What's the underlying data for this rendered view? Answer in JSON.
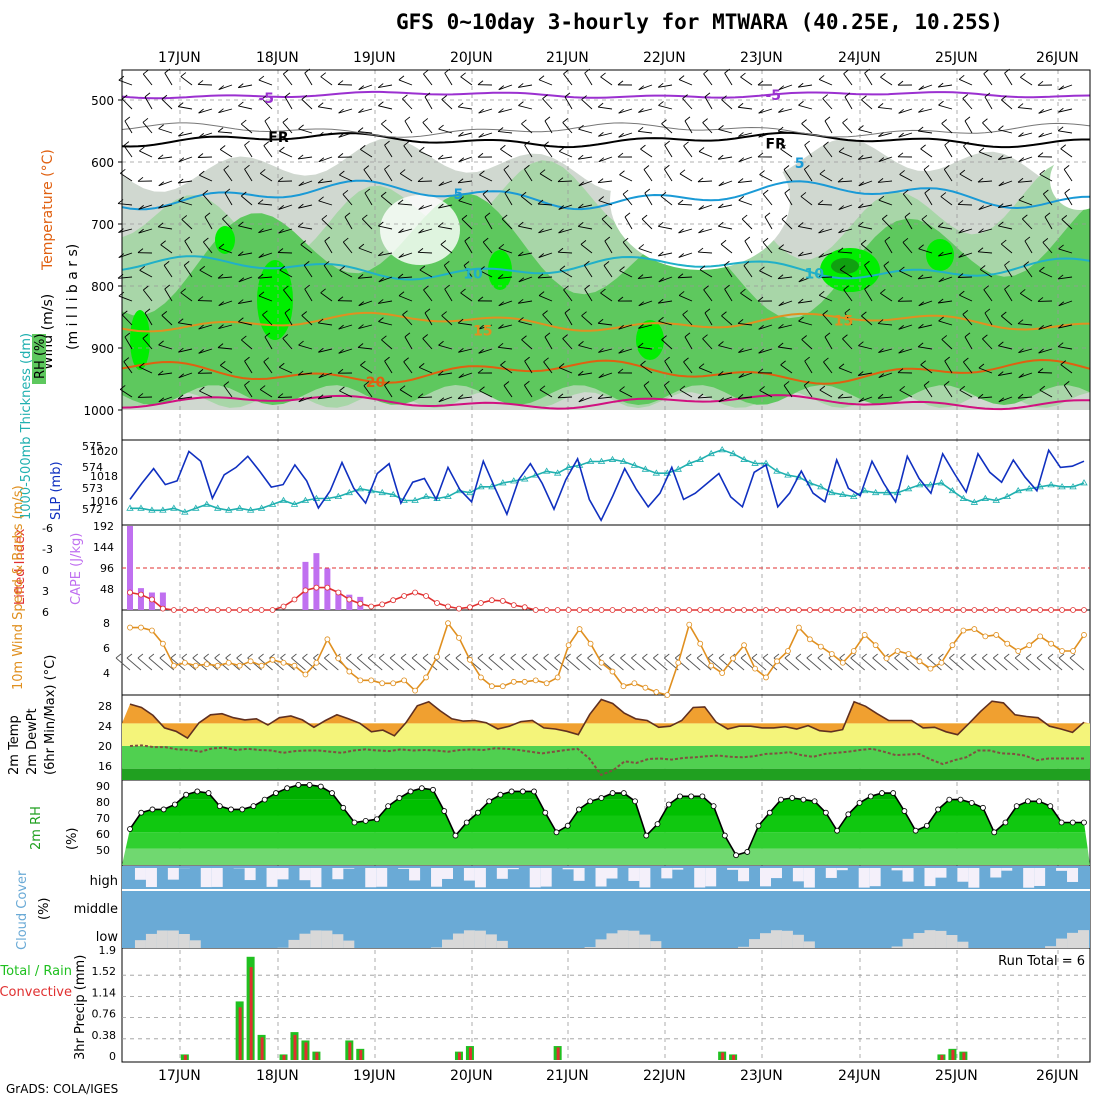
{
  "title": "GFS 0~10day 3-hourly for MTWARA (40.25E, 10.25S)",
  "footer": "GrADS: COLA/IGES",
  "colors": {
    "rh_light": "#d0d8d0",
    "rh_mid": "#a8d6a8",
    "rh_green": "#5ec85e",
    "rh_bright": "#00ee00",
    "temp_purple": "#9b30d0",
    "temp_blue": "#1a9ad6",
    "temp_cyan": "#20b0c8",
    "temp_orange": "#e09020",
    "temp_dark_orange": "#e06010",
    "slp": "#1030c0",
    "thickness": "#20b0b0",
    "cape": "#c070f0",
    "lifted_index": "#e03030",
    "wind_speed": "#e09020",
    "temp_fill": "#f0a030",
    "dewpt_fill": "#50d050",
    "rh_fill": "#20c020",
    "cloud_blue": "#6aaad6",
    "cloud_grey": "#d8d8d8",
    "precip_total": "#20c020",
    "precip_conv": "#e03030"
  },
  "chart_data": [
    {
      "type": "area",
      "panel": "upper-air",
      "ylabel_rh": "RH (%)",
      "ylabel_temp": "Temperature (°C)",
      "ylabel_wind": "Wind (m/s)",
      "ylabel_units": "(m i l l i b a r s)",
      "y_ticks": [
        "500",
        "600",
        "700",
        "800",
        "900",
        "1000"
      ],
      "ylim": [
        1000,
        450
      ],
      "dates": [
        "17JUN",
        "18JUN",
        "19JUN",
        "20JUN",
        "21JUN",
        "22JUN",
        "23JUN",
        "24JUN",
        "25JUN",
        "26JUN"
      ],
      "contour_labels": [
        {
          "text": "-5",
          "t": 1.4,
          "p": 497,
          "color": "temp_purple"
        },
        {
          "text": "-5",
          "t": 6.6,
          "p": 492,
          "color": "temp_purple"
        },
        {
          "text": "FR",
          "t": 1.5,
          "p": 560,
          "color": "black"
        },
        {
          "text": "FR",
          "t": 6.6,
          "p": 570,
          "color": "black"
        },
        {
          "text": "5",
          "t": 3.4,
          "p": 652,
          "color": "temp_blue"
        },
        {
          "text": "5",
          "t": 6.9,
          "p": 602,
          "color": "temp_blue"
        },
        {
          "text": "10",
          "t": 3.5,
          "p": 780,
          "color": "temp_cyan"
        },
        {
          "text": "10",
          "t": 7.0,
          "p": 780,
          "color": "temp_cyan"
        },
        {
          "text": "15",
          "t": 3.6,
          "p": 872,
          "color": "temp_orange"
        },
        {
          "text": "15",
          "t": 7.3,
          "p": 856,
          "color": "temp_orange"
        },
        {
          "text": "20",
          "t": 2.5,
          "p": 955,
          "color": "temp_dark_orange"
        }
      ]
    },
    {
      "type": "line",
      "panel": "slp-thickness",
      "ylabel_left": "1000-500mb Thickness (dm)",
      "ylabel_right": "SLP (mb)",
      "y_ticks_left": [
        "575",
        "574",
        "573",
        "572"
      ],
      "y_ticks_right": [
        "1020",
        "1018",
        "1016"
      ],
      "series": [
        {
          "role": "slp",
          "values": [
            1016.5,
            1017.8,
            1019.0,
            1017.7,
            1018.0,
            1020.4,
            1019.6,
            1016.6,
            1018.5,
            1019.1,
            1020.0,
            1018.8,
            1017.5,
            1017.7,
            1019.3,
            1018.0,
            1015.8,
            1017.2,
            1019.5,
            1017.4,
            1016.2,
            1018.6,
            1019.4,
            1016.2,
            1017.9,
            1018.2,
            1016.5,
            1019.1,
            1017.3,
            1016.3,
            1019.6,
            1017.4,
            1015.3,
            1018.1,
            1019.4,
            1017.8,
            1015.7,
            1018.1,
            1019.8,
            1016.5,
            1014.8,
            1016.8,
            1019.0,
            1017.3,
            1015.9,
            1017.0,
            1019.1,
            1016.5,
            1017.0,
            1017.8,
            1018.6,
            1016.7,
            1015.9,
            1018.7,
            1019.3,
            1015.9,
            1017.0,
            1018.8,
            1017.0,
            1016.3,
            1019.7,
            1017.4,
            1016.8,
            1019.6,
            1017.8,
            1016.3,
            1020.0,
            1018.2,
            1017.0,
            1020.2,
            1018.6,
            1017.1,
            1020.2,
            1018.7,
            1017.9,
            1019.7,
            1018.3,
            1017.2,
            1020.5,
            1019.1,
            1019.2,
            1019.6
          ]
        },
        {
          "role": "thickness",
          "values": [
            572.1,
            572.1,
            572.0,
            572.0,
            572.1,
            571.9,
            572.1,
            572.3,
            572.1,
            572.0,
            572.1,
            572.0,
            572.1,
            572.3,
            572.5,
            572.3,
            572.5,
            572.6,
            572.6,
            572.7,
            572.9,
            573.1,
            573.0,
            572.9,
            572.8,
            572.5,
            572.5,
            572.7,
            572.6,
            572.7,
            573.0,
            572.9,
            573.2,
            573.2,
            573.4,
            573.5,
            573.6,
            573.8,
            574.0,
            573.9,
            574.2,
            574.3,
            574.5,
            574.5,
            574.6,
            574.5,
            574.3,
            574.1,
            573.9,
            573.9,
            574.1,
            574.4,
            574.6,
            574.9,
            575.1,
            574.9,
            574.6,
            574.4,
            574.4,
            574.0,
            573.8,
            573.7,
            573.4,
            573.2,
            572.9,
            572.8,
            572.7,
            573.0,
            572.9,
            572.9,
            572.9,
            573.1,
            573.3,
            573.3,
            573.4,
            573.0,
            572.6,
            572.4,
            572.6,
            572.5,
            572.7,
            573.0,
            573.1,
            573.2,
            573.3,
            573.2,
            573.2,
            573.4
          ]
        }
      ]
    },
    {
      "type": "bar",
      "panel": "cape-li",
      "ylabel_left": "Lifted Index",
      "ylabel_right": "CAPE (J/kg)",
      "y_ticks_left": [
        "-6",
        "-3",
        "0",
        "3",
        "6"
      ],
      "y_ticks_right": [
        "192",
        "144",
        "96",
        "48",
        ""
      ],
      "series": [
        {
          "role": "cape",
          "values": [
            192,
            50,
            40,
            40,
            0,
            0,
            0,
            0,
            0,
            0,
            0,
            0,
            0,
            0,
            0,
            0,
            110,
            130,
            95,
            45,
            35,
            30,
            0,
            0,
            0,
            0,
            0,
            0,
            0,
            0,
            0,
            0,
            0,
            0,
            0,
            0,
            0,
            0,
            0,
            0,
            0,
            0,
            0,
            0,
            0,
            0,
            0,
            0,
            0,
            0,
            0,
            0,
            0,
            0,
            0,
            0,
            0,
            0,
            0,
            0,
            0,
            0,
            0,
            0,
            0,
            0,
            0,
            0,
            0,
            0,
            0,
            0,
            0,
            0,
            0,
            0,
            0,
            0,
            0,
            0,
            0,
            0,
            0,
            0,
            0,
            0,
            0,
            0
          ]
        },
        {
          "role": "li",
          "values": [
            3.5,
            3.8,
            4.5,
            5.8,
            6.0,
            6.0,
            6.0,
            6.0,
            6.0,
            6.0,
            6.0,
            6.0,
            6.0,
            6.0,
            5.5,
            4.5,
            3.2,
            2.8,
            2.8,
            3.5,
            4.5,
            5.1,
            5.5,
            5.2,
            4.6,
            4.0,
            3.5,
            4.0,
            5.0,
            5.5,
            5.8,
            5.6,
            5.0,
            4.6,
            4.7,
            5.3,
            5.6,
            6.0,
            6.0,
            6.0,
            6.0,
            6.0,
            6.0,
            6.0,
            6.0,
            6.0,
            6.0,
            6.0,
            6.0,
            6.0,
            6.0,
            6.0,
            6.0,
            6.0,
            6.0,
            6.0,
            6.0,
            6.0,
            6.0,
            6.0,
            6.0,
            6.0,
            6.0,
            6.0,
            6.0,
            6.0,
            6.0,
            6.0,
            6.0,
            6.0,
            6.0,
            6.0,
            6.0,
            6.0,
            6.0,
            6.0,
            6.0,
            6.0,
            6.0,
            6.0,
            6.0,
            6.0,
            6.0,
            6.0,
            6.0,
            6.0,
            6.0,
            6.0
          ]
        }
      ]
    },
    {
      "type": "line",
      "panel": "wind",
      "ylabel": "10m Wind Speed & Barbs (m/s)",
      "y_ticks": [
        "8",
        "6",
        "4"
      ],
      "series": [
        {
          "role": "speed",
          "values": [
            7.6,
            7.6,
            7.4,
            6.5,
            5.0,
            5.2,
            5.0,
            5.1,
            5.0,
            5.2,
            5.0,
            5.3,
            5.0,
            5.4,
            5.2,
            5.0,
            4.4,
            5.2,
            6.8,
            5.5,
            4.6,
            4.0,
            4.0,
            3.8,
            3.8,
            4.0,
            3.3,
            4.2,
            5.6,
            7.9,
            6.9,
            5.4,
            4.2,
            3.6,
            3.6,
            3.9,
            3.9,
            4.0,
            3.8,
            4.2,
            6.4,
            7.5,
            6.5,
            5.2,
            4.6,
            3.6,
            3.8,
            3.5,
            3.2,
            3.0,
            5.2,
            7.8,
            6.5,
            5.0,
            4.5,
            5.5,
            6.4,
            4.8,
            4.2,
            5.3,
            6.0,
            7.6,
            6.8,
            6.3,
            5.8,
            5.2,
            6.0,
            7.1,
            6.4,
            5.5,
            6.0,
            5.8,
            5.3,
            4.8,
            5.2,
            6.4,
            7.4,
            7.5,
            7.0,
            7.1,
            6.5,
            6.0,
            6.4,
            7.0,
            6.5,
            6.0,
            6.0,
            7.1
          ]
        }
      ]
    },
    {
      "type": "area",
      "panel": "temp",
      "ylabel": "2m Temp 2m DewPt (6hr Min/Max) (°C)",
      "y_ticks": [
        "28",
        "24",
        "20",
        "16"
      ],
      "series": [
        {
          "role": "temp",
          "values": [
            27.4,
            26.8,
            25.4,
            23.2,
            22.6,
            21.4,
            24.1,
            25.5,
            25.7,
            25.0,
            24.6,
            24.8,
            23.7,
            25.0,
            25.3,
            24.6,
            23.3,
            24.5,
            25.5,
            24.8,
            24.0,
            22.5,
            22.8,
            21.8,
            24.1,
            27.1,
            27.8,
            26.2,
            24.8,
            24.4,
            24.5,
            24.1,
            23.0,
            23.5,
            24.3,
            24.5,
            23.2,
            23.0,
            22.6,
            22.0,
            25.6,
            28.2,
            27.5,
            25.8,
            24.8,
            24.5,
            23.3,
            23.5,
            24.5,
            26.8,
            26.9,
            24.2,
            23.0,
            23.5,
            23.5,
            23.2,
            23.2,
            23.4,
            23.0,
            23.6,
            22.7,
            22.5,
            22.9,
            27.8,
            27.0,
            25.7,
            24.5,
            24.5,
            24.5,
            23.2,
            23.3,
            22.5,
            22.0,
            24.0,
            26.1,
            27.9,
            27.6,
            25.5,
            25.2,
            25.0,
            23.5,
            23.0,
            22.4,
            24.2
          ]
        },
        {
          "role": "dewpt",
          "values": [
            20.0,
            20.1,
            19.8,
            19.8,
            19.4,
            19.3,
            19.0,
            19.6,
            19.7,
            19.3,
            19.5,
            19.3,
            19.2,
            18.8,
            19.1,
            19.2,
            19.2,
            19.0,
            18.8,
            19.2,
            19.4,
            19.2,
            19.1,
            19.4,
            19.2,
            19.3,
            19.2,
            19.0,
            19.3,
            19.4,
            19.3,
            19.6,
            19.5,
            19.3,
            19.0,
            18.7,
            19.0,
            19.3,
            19.5,
            17.8,
            14.9,
            15.7,
            17.3,
            17.0,
            17.7,
            17.8,
            17.6,
            17.9,
            18.0,
            18.2,
            18.3,
            18.1,
            18.0,
            18.2,
            18.6,
            18.7,
            18.9,
            18.4,
            18.1,
            18.6,
            18.8,
            19.0,
            19.3,
            19.5,
            19.0,
            18.4,
            18.5,
            18.6,
            17.6,
            16.8,
            17.5,
            18.0,
            19.2,
            19.2,
            18.7,
            18.6,
            18.3,
            17.5,
            17.8,
            17.8,
            17.8,
            17.8
          ]
        }
      ]
    },
    {
      "type": "area",
      "panel": "rh",
      "ylabel": "2m RH (%)",
      "y_ticks": [
        "90",
        "80",
        "70",
        "60",
        "50"
      ],
      "series": [
        {
          "role": "rh",
          "values": [
            62,
            72,
            74,
            74,
            77,
            83,
            85,
            84,
            76,
            74,
            74,
            76,
            80,
            84,
            87,
            89,
            89,
            88,
            84,
            75,
            66,
            67,
            68,
            76,
            81,
            85,
            87,
            86,
            73,
            58,
            66,
            72,
            79,
            83,
            85,
            85,
            85,
            72,
            60,
            64,
            74,
            79,
            81,
            84,
            84,
            79,
            58,
            65,
            77,
            82,
            82,
            82,
            76,
            58,
            46,
            48,
            64,
            72,
            80,
            81,
            80,
            79,
            72,
            61,
            71,
            78,
            82,
            84,
            84,
            73,
            61,
            64,
            74,
            80,
            80,
            78,
            75,
            60,
            66,
            76,
            79,
            79,
            76,
            66,
            66,
            66
          ]
        }
      ]
    },
    {
      "type": "bar",
      "panel": "cloud",
      "ylabel": "Cloud Cover (%)",
      "levels": [
        "high",
        "middle",
        "low"
      ]
    },
    {
      "type": "bar",
      "panel": "precip",
      "ylabel_left": "Total / Rain",
      "ylabel_left2": "Convective",
      "ylabel_right": "3hr Precip (mm)",
      "y_ticks": [
        "1.9",
        "1.52",
        "1.14",
        "0.76",
        "0.38",
        "0"
      ],
      "run_total": "Run Total = 6",
      "series": [
        {
          "role": "total",
          "values": [
            0,
            0,
            0,
            0,
            0,
            0.1,
            0,
            0,
            0,
            0,
            1.05,
            1.85,
            0.45,
            0,
            0.1,
            0.5,
            0.35,
            0.15,
            0,
            0,
            0.35,
            0.2,
            0,
            0,
            0,
            0,
            0,
            0,
            0,
            0,
            0.15,
            0.25,
            0,
            0,
            0,
            0,
            0,
            0,
            0,
            0.25,
            0,
            0,
            0,
            0,
            0,
            0,
            0,
            0,
            0,
            0,
            0,
            0,
            0,
            0,
            0.15,
            0.1,
            0,
            0,
            0,
            0,
            0,
            0,
            0,
            0,
            0,
            0,
            0,
            0,
            0,
            0,
            0,
            0,
            0,
            0,
            0.1,
            0.2,
            0.15,
            0,
            0,
            0,
            0,
            0,
            0,
            0,
            0,
            0,
            0,
            0
          ]
        }
      ]
    }
  ]
}
